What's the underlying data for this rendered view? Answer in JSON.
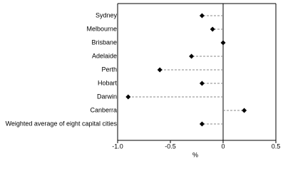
{
  "chart_data": {
    "type": "dot",
    "categories": [
      "Sydney",
      "Melbourne",
      "Brisbane",
      "Adelaide",
      "Perth",
      "Hobart",
      "Darwin",
      "Canberra",
      "Weighted average of eight capital cities"
    ],
    "values": [
      -0.2,
      -0.1,
      0,
      -0.3,
      -0.6,
      -0.2,
      -0.9,
      0.2,
      -0.2
    ],
    "color": "#000000",
    "xlim": [
      -1,
      0.5
    ],
    "xticks": [
      {
        "value": -1,
        "label": "-1.0"
      },
      {
        "value": -0.5,
        "label": "-0.5"
      },
      0,
      0.5
    ],
    "xlabel": "%"
  }
}
